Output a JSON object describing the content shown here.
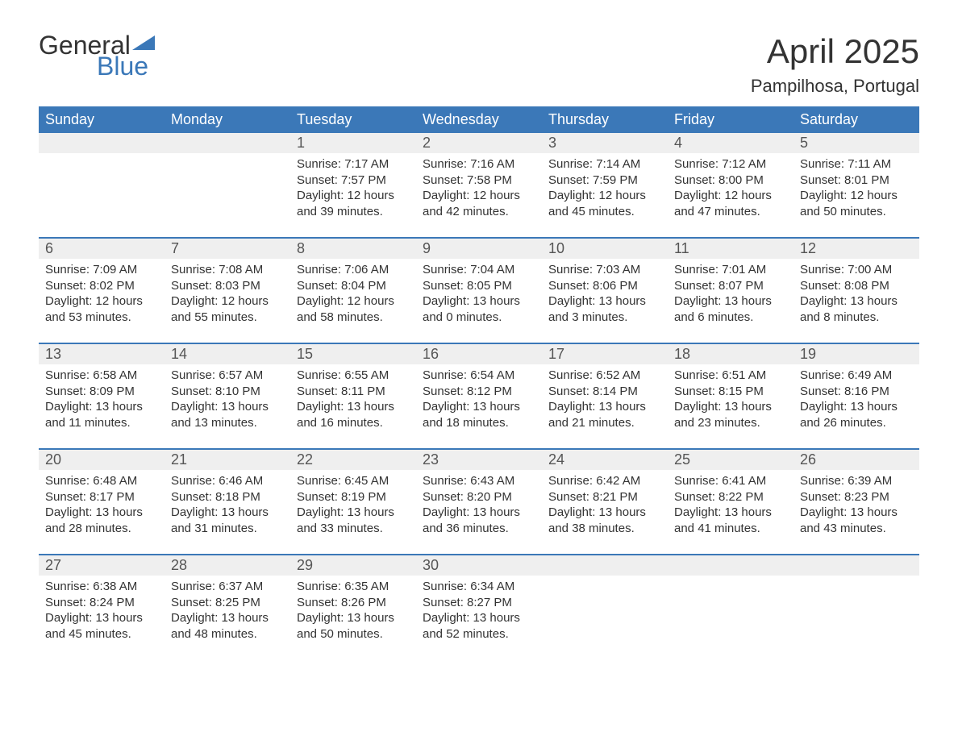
{
  "brand": {
    "part1": "General",
    "part2": "Blue",
    "accent_color": "#3b78b8",
    "text_color": "#333333"
  },
  "title": "April 2025",
  "location": "Pampilhosa, Portugal",
  "colors": {
    "header_bg": "#3b78b8",
    "header_fg": "#ffffff",
    "daynum_bg": "#efefef",
    "border": "#3b78b8",
    "body_bg": "#ffffff",
    "text": "#333333"
  },
  "typography": {
    "title_fontsize": 42,
    "location_fontsize": 22,
    "weekday_fontsize": 18,
    "daynum_fontsize": 18,
    "detail_fontsize": 15
  },
  "weekdays": [
    "Sunday",
    "Monday",
    "Tuesday",
    "Wednesday",
    "Thursday",
    "Friday",
    "Saturday"
  ],
  "weeks": [
    [
      null,
      null,
      {
        "n": "1",
        "sunrise": "7:17 AM",
        "sunset": "7:57 PM",
        "daylight": "12 hours and 39 minutes."
      },
      {
        "n": "2",
        "sunrise": "7:16 AM",
        "sunset": "7:58 PM",
        "daylight": "12 hours and 42 minutes."
      },
      {
        "n": "3",
        "sunrise": "7:14 AM",
        "sunset": "7:59 PM",
        "daylight": "12 hours and 45 minutes."
      },
      {
        "n": "4",
        "sunrise": "7:12 AM",
        "sunset": "8:00 PM",
        "daylight": "12 hours and 47 minutes."
      },
      {
        "n": "5",
        "sunrise": "7:11 AM",
        "sunset": "8:01 PM",
        "daylight": "12 hours and 50 minutes."
      }
    ],
    [
      {
        "n": "6",
        "sunrise": "7:09 AM",
        "sunset": "8:02 PM",
        "daylight": "12 hours and 53 minutes."
      },
      {
        "n": "7",
        "sunrise": "7:08 AM",
        "sunset": "8:03 PM",
        "daylight": "12 hours and 55 minutes."
      },
      {
        "n": "8",
        "sunrise": "7:06 AM",
        "sunset": "8:04 PM",
        "daylight": "12 hours and 58 minutes."
      },
      {
        "n": "9",
        "sunrise": "7:04 AM",
        "sunset": "8:05 PM",
        "daylight": "13 hours and 0 minutes."
      },
      {
        "n": "10",
        "sunrise": "7:03 AM",
        "sunset": "8:06 PM",
        "daylight": "13 hours and 3 minutes."
      },
      {
        "n": "11",
        "sunrise": "7:01 AM",
        "sunset": "8:07 PM",
        "daylight": "13 hours and 6 minutes."
      },
      {
        "n": "12",
        "sunrise": "7:00 AM",
        "sunset": "8:08 PM",
        "daylight": "13 hours and 8 minutes."
      }
    ],
    [
      {
        "n": "13",
        "sunrise": "6:58 AM",
        "sunset": "8:09 PM",
        "daylight": "13 hours and 11 minutes."
      },
      {
        "n": "14",
        "sunrise": "6:57 AM",
        "sunset": "8:10 PM",
        "daylight": "13 hours and 13 minutes."
      },
      {
        "n": "15",
        "sunrise": "6:55 AM",
        "sunset": "8:11 PM",
        "daylight": "13 hours and 16 minutes."
      },
      {
        "n": "16",
        "sunrise": "6:54 AM",
        "sunset": "8:12 PM",
        "daylight": "13 hours and 18 minutes."
      },
      {
        "n": "17",
        "sunrise": "6:52 AM",
        "sunset": "8:14 PM",
        "daylight": "13 hours and 21 minutes."
      },
      {
        "n": "18",
        "sunrise": "6:51 AM",
        "sunset": "8:15 PM",
        "daylight": "13 hours and 23 minutes."
      },
      {
        "n": "19",
        "sunrise": "6:49 AM",
        "sunset": "8:16 PM",
        "daylight": "13 hours and 26 minutes."
      }
    ],
    [
      {
        "n": "20",
        "sunrise": "6:48 AM",
        "sunset": "8:17 PM",
        "daylight": "13 hours and 28 minutes."
      },
      {
        "n": "21",
        "sunrise": "6:46 AM",
        "sunset": "8:18 PM",
        "daylight": "13 hours and 31 minutes."
      },
      {
        "n": "22",
        "sunrise": "6:45 AM",
        "sunset": "8:19 PM",
        "daylight": "13 hours and 33 minutes."
      },
      {
        "n": "23",
        "sunrise": "6:43 AM",
        "sunset": "8:20 PM",
        "daylight": "13 hours and 36 minutes."
      },
      {
        "n": "24",
        "sunrise": "6:42 AM",
        "sunset": "8:21 PM",
        "daylight": "13 hours and 38 minutes."
      },
      {
        "n": "25",
        "sunrise": "6:41 AM",
        "sunset": "8:22 PM",
        "daylight": "13 hours and 41 minutes."
      },
      {
        "n": "26",
        "sunrise": "6:39 AM",
        "sunset": "8:23 PM",
        "daylight": "13 hours and 43 minutes."
      }
    ],
    [
      {
        "n": "27",
        "sunrise": "6:38 AM",
        "sunset": "8:24 PM",
        "daylight": "13 hours and 45 minutes."
      },
      {
        "n": "28",
        "sunrise": "6:37 AM",
        "sunset": "8:25 PM",
        "daylight": "13 hours and 48 minutes."
      },
      {
        "n": "29",
        "sunrise": "6:35 AM",
        "sunset": "8:26 PM",
        "daylight": "13 hours and 50 minutes."
      },
      {
        "n": "30",
        "sunrise": "6:34 AM",
        "sunset": "8:27 PM",
        "daylight": "13 hours and 52 minutes."
      },
      null,
      null,
      null
    ]
  ],
  "labels": {
    "sunrise": "Sunrise: ",
    "sunset": "Sunset: ",
    "daylight": "Daylight: "
  }
}
